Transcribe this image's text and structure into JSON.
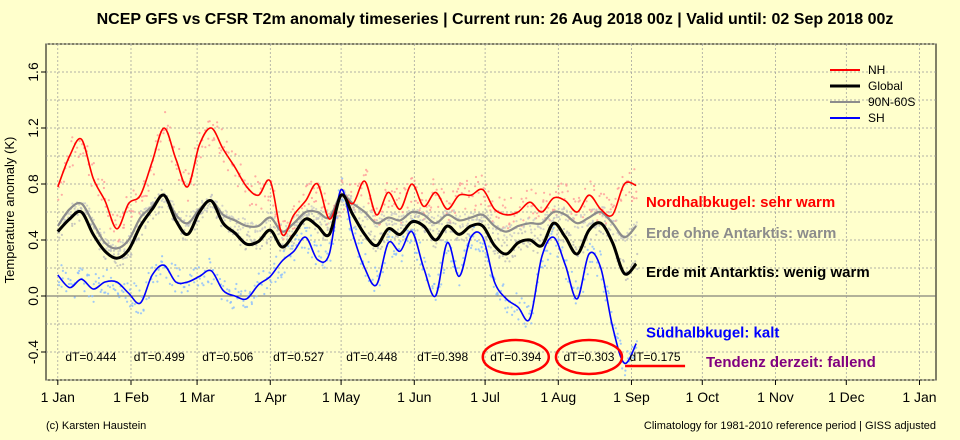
{
  "chart_data": {
    "type": "line",
    "title": "NCEP GFS vs CFSR T2m anomaly timeseries | Current run: 26 Aug 2018 00z | Valid until: 02 Sep 2018 00z",
    "ylabel": "Temperature anomaly (K)",
    "ylim": [
      -0.6,
      1.8
    ],
    "xlim_day": [
      -5,
      372
    ],
    "yticks": [
      -0.4,
      0.0,
      0.4,
      0.8,
      1.2,
      1.6
    ],
    "ytick_labels": [
      "-0.4",
      "0.0",
      "0.4",
      "0.8",
      "1.2",
      "1.6"
    ],
    "xticks": [
      {
        "label": "1 Jan",
        "day": 0
      },
      {
        "label": "1 Feb",
        "day": 31
      },
      {
        "label": "1 Mar",
        "day": 59
      },
      {
        "label": "1 Apr",
        "day": 90
      },
      {
        "label": "1 May",
        "day": 120
      },
      {
        "label": "1 Jun",
        "day": 151
      },
      {
        "label": "1 Jul",
        "day": 181
      },
      {
        "label": "1 Aug",
        "day": 212
      },
      {
        "label": "1 Sep",
        "day": 243
      },
      {
        "label": "1 Oct",
        "day": 273
      },
      {
        "label": "1 Nov",
        "day": 304
      },
      {
        "label": "1 Dec",
        "day": 334
      },
      {
        "label": "1 Jan",
        "day": 365
      }
    ],
    "grid": true,
    "legend_position": "top-right",
    "series": [
      {
        "name": "NH",
        "color": "#ff0000",
        "x": [
          0,
          5,
          10,
          15,
          20,
          25,
          30,
          35,
          40,
          45,
          50,
          55,
          60,
          65,
          70,
          75,
          80,
          85,
          90,
          95,
          100,
          105,
          110,
          115,
          120,
          125,
          130,
          135,
          140,
          145,
          150,
          155,
          160,
          165,
          170,
          175,
          180,
          185,
          190,
          195,
          200,
          205,
          210,
          215,
          220,
          225,
          230,
          235,
          240,
          245
        ],
        "values": [
          0.78,
          1.0,
          1.12,
          0.84,
          0.68,
          0.48,
          0.66,
          0.72,
          0.96,
          1.2,
          0.98,
          0.78,
          1.08,
          1.2,
          1.05,
          0.92,
          0.78,
          0.72,
          0.82,
          0.44,
          0.58,
          0.68,
          0.8,
          0.55,
          0.72,
          0.66,
          0.82,
          0.58,
          0.74,
          0.62,
          0.8,
          0.64,
          0.74,
          0.62,
          0.72,
          0.72,
          0.76,
          0.62,
          0.58,
          0.6,
          0.67,
          0.6,
          0.7,
          0.68,
          0.6,
          0.72,
          0.62,
          0.58,
          0.8,
          0.79
        ]
      },
      {
        "name": "Global",
        "color": "#000000",
        "x": [
          0,
          5,
          10,
          15,
          20,
          25,
          30,
          35,
          40,
          45,
          50,
          55,
          60,
          65,
          70,
          75,
          80,
          85,
          90,
          95,
          100,
          105,
          110,
          115,
          120,
          125,
          130,
          135,
          140,
          145,
          150,
          155,
          160,
          165,
          170,
          175,
          180,
          185,
          190,
          195,
          200,
          205,
          210,
          215,
          220,
          225,
          230,
          235,
          240,
          245
        ],
        "values": [
          0.46,
          0.55,
          0.6,
          0.44,
          0.32,
          0.27,
          0.33,
          0.5,
          0.62,
          0.72,
          0.54,
          0.44,
          0.6,
          0.68,
          0.52,
          0.45,
          0.37,
          0.39,
          0.47,
          0.35,
          0.44,
          0.55,
          0.5,
          0.44,
          0.72,
          0.58,
          0.44,
          0.36,
          0.48,
          0.44,
          0.53,
          0.5,
          0.4,
          0.5,
          0.44,
          0.5,
          0.5,
          0.36,
          0.3,
          0.38,
          0.4,
          0.36,
          0.52,
          0.42,
          0.3,
          0.47,
          0.52,
          0.38,
          0.16,
          0.23
        ]
      },
      {
        "name": "90N-60S",
        "color": "#8c8c8c",
        "x": [
          0,
          5,
          10,
          15,
          20,
          25,
          30,
          35,
          40,
          45,
          50,
          55,
          60,
          65,
          70,
          75,
          80,
          85,
          90,
          95,
          100,
          105,
          110,
          115,
          120,
          125,
          130,
          135,
          140,
          145,
          150,
          155,
          160,
          165,
          170,
          175,
          180,
          185,
          190,
          195,
          200,
          205,
          210,
          215,
          220,
          225,
          230,
          235,
          240,
          245
        ],
        "values": [
          0.5,
          0.62,
          0.66,
          0.52,
          0.38,
          0.34,
          0.4,
          0.56,
          0.64,
          0.72,
          0.58,
          0.52,
          0.62,
          0.68,
          0.58,
          0.54,
          0.5,
          0.5,
          0.56,
          0.46,
          0.52,
          0.6,
          0.6,
          0.56,
          0.72,
          0.66,
          0.6,
          0.52,
          0.56,
          0.54,
          0.6,
          0.58,
          0.52,
          0.58,
          0.54,
          0.56,
          0.58,
          0.5,
          0.46,
          0.5,
          0.52,
          0.52,
          0.6,
          0.58,
          0.52,
          0.56,
          0.6,
          0.52,
          0.42,
          0.5
        ]
      },
      {
        "name": "SH",
        "color": "#0000ff",
        "x": [
          0,
          5,
          10,
          15,
          20,
          25,
          30,
          35,
          40,
          45,
          50,
          55,
          60,
          65,
          70,
          75,
          80,
          85,
          90,
          95,
          100,
          105,
          110,
          115,
          120,
          125,
          130,
          135,
          140,
          145,
          150,
          155,
          160,
          165,
          170,
          175,
          180,
          185,
          190,
          195,
          200,
          205,
          210,
          215,
          220,
          225,
          230,
          235,
          240,
          245
        ],
        "values": [
          0.15,
          0.06,
          0.12,
          0.05,
          0.1,
          0.1,
          0.02,
          -0.05,
          0.15,
          0.22,
          0.1,
          0.1,
          0.14,
          0.18,
          0.04,
          0.0,
          -0.02,
          0.08,
          0.14,
          0.25,
          0.32,
          0.42,
          0.26,
          0.3,
          0.76,
          0.44,
          0.2,
          0.08,
          0.38,
          0.32,
          0.46,
          0.2,
          0.0,
          0.38,
          0.14,
          0.42,
          0.42,
          0.1,
          -0.02,
          -0.08,
          -0.16,
          0.28,
          0.42,
          0.22,
          -0.02,
          0.3,
          0.2,
          -0.22,
          -0.48,
          -0.34
        ]
      }
    ],
    "scatter_points": "daily values shown as faint dots around each series",
    "dT_labels": [
      {
        "text": "dT=0.444",
        "day": 14
      },
      {
        "text": "dT=0.499",
        "day": 43
      },
      {
        "text": "dT=0.506",
        "day": 72
      },
      {
        "text": "dT=0.527",
        "day": 102
      },
      {
        "text": "dT=0.448",
        "day": 133
      },
      {
        "text": "dT=0.398",
        "day": 163
      },
      {
        "text": "dT=0.394",
        "day": 194,
        "highlight": "circle"
      },
      {
        "text": "dT=0.303",
        "day": 225,
        "highlight": "circle"
      },
      {
        "text": "dT=0.175",
        "day": 253,
        "highlight": "underline"
      }
    ],
    "annotations": [
      {
        "text": "Nordhalbkugel: sehr warm",
        "color": "#ff0000",
        "y": 0.67
      },
      {
        "text": "Erde ohne Antarktis: warm",
        "color": "#8c8c8c",
        "y": 0.45
      },
      {
        "text": "Erde mit Antarktis: wenig warm",
        "color": "#000000",
        "y": 0.17
      },
      {
        "text": "Südhalbkugel: kalt",
        "color": "#0000ff",
        "y": -0.26
      },
      {
        "text": "Tendenz derzeit: fallend",
        "color": "#800080",
        "y": -0.47
      }
    ],
    "credit_left": "(c) Karsten Haustein",
    "credit_right": "Climatology for 1981-2010 reference period | GISS adjusted"
  }
}
